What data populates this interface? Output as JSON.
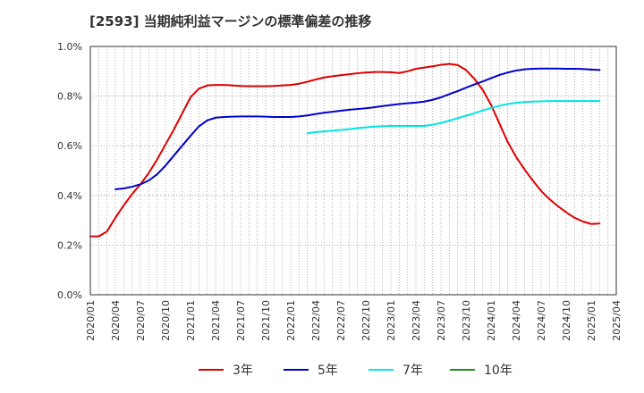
{
  "chart_data": {
    "type": "line",
    "title": "[2593]  当期純利益マージンの標準偏差の推移",
    "xlabel": "",
    "ylabel": "",
    "ylim": [
      0,
      1.0
    ],
    "y_ticks": [
      "0.0%",
      "0.2%",
      "0.4%",
      "0.6%",
      "0.8%",
      "1.0%"
    ],
    "x_ticks": [
      "2020/01",
      "2020/04",
      "2020/07",
      "2020/10",
      "2021/01",
      "2021/04",
      "2021/07",
      "2021/10",
      "2022/01",
      "2022/04",
      "2022/07",
      "2022/10",
      "2023/01",
      "2023/04",
      "2023/07",
      "2023/10",
      "2024/01",
      "2024/04",
      "2024/07",
      "2024/10",
      "2025/01",
      "2025/04"
    ],
    "grid": true,
    "legend_position": "bottom",
    "series": [
      {
        "name": "3年",
        "color": "#dd0000",
        "points": [
          [
            "2020/01",
            0.235
          ],
          [
            "2020/02",
            0.235
          ],
          [
            "2020/03",
            0.255
          ],
          [
            "2020/04",
            0.31
          ],
          [
            "2020/05",
            0.36
          ],
          [
            "2020/06",
            0.405
          ],
          [
            "2020/07",
            0.445
          ],
          [
            "2020/08",
            0.49
          ],
          [
            "2020/09",
            0.545
          ],
          [
            "2020/10",
            0.605
          ],
          [
            "2020/11",
            0.665
          ],
          [
            "2020/12",
            0.73
          ],
          [
            "2021/01",
            0.795
          ],
          [
            "2021/02",
            0.83
          ],
          [
            "2021/03",
            0.843
          ],
          [
            "2021/04",
            0.845
          ],
          [
            "2021/05",
            0.845
          ],
          [
            "2021/06",
            0.843
          ],
          [
            "2021/07",
            0.841
          ],
          [
            "2021/08",
            0.84
          ],
          [
            "2021/09",
            0.84
          ],
          [
            "2021/10",
            0.84
          ],
          [
            "2021/11",
            0.841
          ],
          [
            "2021/12",
            0.843
          ],
          [
            "2022/01",
            0.845
          ],
          [
            "2022/02",
            0.85
          ],
          [
            "2022/03",
            0.858
          ],
          [
            "2022/04",
            0.867
          ],
          [
            "2022/05",
            0.875
          ],
          [
            "2022/06",
            0.88
          ],
          [
            "2022/07",
            0.884
          ],
          [
            "2022/08",
            0.888
          ],
          [
            "2022/09",
            0.892
          ],
          [
            "2022/10",
            0.895
          ],
          [
            "2022/11",
            0.897
          ],
          [
            "2022/12",
            0.897
          ],
          [
            "2023/01",
            0.896
          ],
          [
            "2023/02",
            0.893
          ],
          [
            "2023/03",
            0.9
          ],
          [
            "2023/04",
            0.91
          ],
          [
            "2023/05",
            0.915
          ],
          [
            "2023/06",
            0.92
          ],
          [
            "2023/07",
            0.926
          ],
          [
            "2023/08",
            0.93
          ],
          [
            "2023/09",
            0.925
          ],
          [
            "2023/10",
            0.905
          ],
          [
            "2023/11",
            0.87
          ],
          [
            "2023/12",
            0.825
          ],
          [
            "2024/01",
            0.765
          ],
          [
            "2024/02",
            0.69
          ],
          [
            "2024/03",
            0.615
          ],
          [
            "2024/04",
            0.555
          ],
          [
            "2024/05",
            0.505
          ],
          [
            "2024/06",
            0.46
          ],
          [
            "2024/07",
            0.418
          ],
          [
            "2024/08",
            0.385
          ],
          [
            "2024/09",
            0.357
          ],
          [
            "2024/10",
            0.332
          ],
          [
            "2024/11",
            0.31
          ],
          [
            "2024/12",
            0.295
          ],
          [
            "2025/01",
            0.285
          ],
          [
            "2025/02",
            0.287
          ]
        ]
      },
      {
        "name": "5年",
        "color": "#0000cc",
        "points": [
          [
            "2020/04",
            0.425
          ],
          [
            "2020/05",
            0.428
          ],
          [
            "2020/06",
            0.435
          ],
          [
            "2020/07",
            0.445
          ],
          [
            "2020/08",
            0.46
          ],
          [
            "2020/09",
            0.485
          ],
          [
            "2020/10",
            0.52
          ],
          [
            "2020/11",
            0.56
          ],
          [
            "2020/12",
            0.6
          ],
          [
            "2021/01",
            0.64
          ],
          [
            "2021/02",
            0.678
          ],
          [
            "2021/03",
            0.702
          ],
          [
            "2021/04",
            0.713
          ],
          [
            "2021/05",
            0.716
          ],
          [
            "2021/06",
            0.717
          ],
          [
            "2021/07",
            0.718
          ],
          [
            "2021/08",
            0.718
          ],
          [
            "2021/09",
            0.718
          ],
          [
            "2021/10",
            0.717
          ],
          [
            "2021/11",
            0.716
          ],
          [
            "2021/12",
            0.716
          ],
          [
            "2022/01",
            0.716
          ],
          [
            "2022/02",
            0.718
          ],
          [
            "2022/03",
            0.722
          ],
          [
            "2022/04",
            0.728
          ],
          [
            "2022/05",
            0.733
          ],
          [
            "2022/06",
            0.737
          ],
          [
            "2022/07",
            0.741
          ],
          [
            "2022/08",
            0.745
          ],
          [
            "2022/09",
            0.748
          ],
          [
            "2022/10",
            0.751
          ],
          [
            "2022/11",
            0.755
          ],
          [
            "2022/12",
            0.76
          ],
          [
            "2023/01",
            0.764
          ],
          [
            "2023/02",
            0.768
          ],
          [
            "2023/03",
            0.771
          ],
          [
            "2023/04",
            0.774
          ],
          [
            "2023/05",
            0.778
          ],
          [
            "2023/06",
            0.785
          ],
          [
            "2023/07",
            0.795
          ],
          [
            "2023/08",
            0.808
          ],
          [
            "2023/09",
            0.82
          ],
          [
            "2023/10",
            0.834
          ],
          [
            "2023/11",
            0.847
          ],
          [
            "2023/12",
            0.859
          ],
          [
            "2024/01",
            0.872
          ],
          [
            "2024/02",
            0.885
          ],
          [
            "2024/03",
            0.895
          ],
          [
            "2024/04",
            0.903
          ],
          [
            "2024/05",
            0.908
          ],
          [
            "2024/06",
            0.91
          ],
          [
            "2024/07",
            0.911
          ],
          [
            "2024/08",
            0.911
          ],
          [
            "2024/09",
            0.911
          ],
          [
            "2024/10",
            0.91
          ],
          [
            "2024/11",
            0.91
          ],
          [
            "2024/12",
            0.909
          ],
          [
            "2025/01",
            0.907
          ],
          [
            "2025/02",
            0.905
          ]
        ]
      },
      {
        "name": "7年",
        "color": "#00e5e5",
        "points": [
          [
            "2022/03",
            0.65
          ],
          [
            "2022/04",
            0.655
          ],
          [
            "2022/05",
            0.658
          ],
          [
            "2022/06",
            0.661
          ],
          [
            "2022/07",
            0.664
          ],
          [
            "2022/08",
            0.667
          ],
          [
            "2022/09",
            0.671
          ],
          [
            "2022/10",
            0.674
          ],
          [
            "2022/11",
            0.677
          ],
          [
            "2022/12",
            0.679
          ],
          [
            "2023/01",
            0.68
          ],
          [
            "2023/02",
            0.68
          ],
          [
            "2023/03",
            0.68
          ],
          [
            "2023/04",
            0.68
          ],
          [
            "2023/05",
            0.68
          ],
          [
            "2023/06",
            0.685
          ],
          [
            "2023/07",
            0.692
          ],
          [
            "2023/08",
            0.701
          ],
          [
            "2023/09",
            0.711
          ],
          [
            "2023/10",
            0.721
          ],
          [
            "2023/11",
            0.731
          ],
          [
            "2023/12",
            0.742
          ],
          [
            "2024/01",
            0.752
          ],
          [
            "2024/02",
            0.761
          ],
          [
            "2024/03",
            0.768
          ],
          [
            "2024/04",
            0.773
          ],
          [
            "2024/05",
            0.776
          ],
          [
            "2024/06",
            0.778
          ],
          [
            "2024/07",
            0.779
          ],
          [
            "2024/08",
            0.78
          ],
          [
            "2024/09",
            0.78
          ],
          [
            "2024/10",
            0.78
          ],
          [
            "2024/11",
            0.78
          ],
          [
            "2024/12",
            0.78
          ],
          [
            "2025/01",
            0.78
          ],
          [
            "2025/02",
            0.78
          ]
        ]
      },
      {
        "name": "10年",
        "color": "#228b22",
        "points": []
      }
    ]
  }
}
